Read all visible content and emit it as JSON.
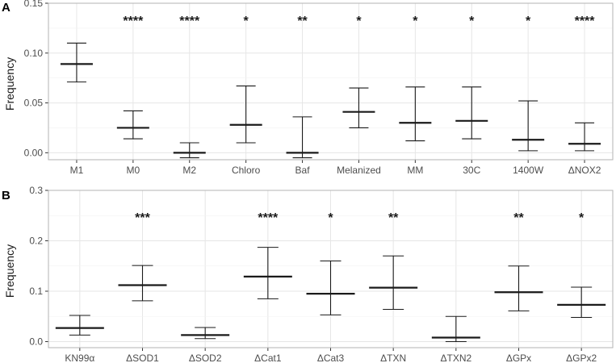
{
  "chart_data": [
    {
      "type": "errorbar",
      "panel_label": "A",
      "ylabel": "Frequency",
      "xlabel": "",
      "ylim": [
        -0.007,
        0.15
      ],
      "yticks": [
        0.0,
        0.05,
        0.1,
        0.15
      ],
      "ytick_labels": [
        "0.00",
        "0.05",
        "0.10",
        "0.15"
      ],
      "grid": true,
      "categories": [
        "M1",
        "M0",
        "M2",
        "Chloro",
        "Baf",
        "Melanized",
        "MM",
        "30C",
        "1400W",
        "ΔNOX2"
      ],
      "values": [
        0.089,
        0.025,
        0.0,
        0.028,
        0.0,
        0.041,
        0.03,
        0.032,
        0.013,
        0.009
      ],
      "lower": [
        0.071,
        0.014,
        -0.005,
        0.01,
        -0.005,
        0.025,
        0.012,
        0.014,
        0.002,
        0.002
      ],
      "upper": [
        0.11,
        0.042,
        0.01,
        0.067,
        0.036,
        0.065,
        0.066,
        0.066,
        0.052,
        0.03
      ],
      "significance": [
        "",
        "****",
        "****",
        "*",
        "**",
        "*",
        "*",
        "*",
        "*",
        "****"
      ]
    },
    {
      "type": "errorbar",
      "panel_label": "B",
      "ylabel": "Frequency",
      "xlabel": "",
      "ylim": [
        -0.012,
        0.3
      ],
      "yticks": [
        0.0,
        0.1,
        0.2,
        0.3
      ],
      "ytick_labels": [
        "0.0",
        "0.1",
        "0.2",
        "0.3"
      ],
      "grid": true,
      "categories": [
        "KN99α",
        "ΔSOD1",
        "ΔSOD2",
        "ΔCat1",
        "ΔCat3",
        "ΔTXN",
        "ΔTXN2",
        "ΔGPx",
        "ΔGPx2"
      ],
      "values": [
        0.027,
        0.112,
        0.013,
        0.129,
        0.095,
        0.107,
        0.008,
        0.098,
        0.073
      ],
      "lower": [
        0.013,
        0.081,
        0.006,
        0.085,
        0.053,
        0.064,
        0.0,
        0.061,
        0.048
      ],
      "upper": [
        0.052,
        0.151,
        0.028,
        0.187,
        0.16,
        0.17,
        0.05,
        0.15,
        0.108
      ],
      "significance": [
        "",
        "***",
        "",
        "****",
        "*",
        "**",
        "",
        "**",
        "*"
      ]
    }
  ]
}
